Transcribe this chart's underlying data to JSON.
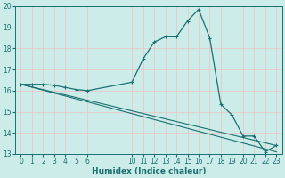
{
  "xlabel": "Humidex (Indice chaleur)",
  "bg_color": "#ccecea",
  "grid_color": "#e8c8c8",
  "line_color": "#1a7070",
  "xlim": [
    -0.5,
    23.5
  ],
  "ylim": [
    13,
    20
  ],
  "yticks": [
    13,
    14,
    15,
    16,
    17,
    18,
    19,
    20
  ],
  "xtick_positions": [
    0,
    1,
    2,
    3,
    4,
    5,
    6,
    10,
    11,
    12,
    13,
    14,
    15,
    16,
    17,
    18,
    19,
    20,
    21,
    22,
    23
  ],
  "xtick_labels": [
    "0",
    "1",
    "2",
    "3",
    "4",
    "5",
    "6",
    "10",
    "11",
    "12",
    "13",
    "14",
    "15",
    "16",
    "17",
    "18",
    "19",
    "20",
    "21",
    "22",
    "23"
  ],
  "curve1_x": [
    0,
    1,
    2,
    3,
    4,
    5,
    6,
    10,
    11,
    12,
    13,
    14,
    15,
    16,
    17,
    18,
    19,
    20,
    21,
    22,
    23
  ],
  "curve1_y": [
    16.3,
    16.3,
    16.3,
    16.25,
    16.15,
    16.05,
    16.0,
    16.4,
    17.5,
    18.3,
    18.55,
    18.55,
    19.3,
    19.85,
    18.5,
    15.35,
    14.85,
    13.85,
    13.85,
    13.1,
    13.4
  ],
  "curve2_x": [
    0,
    23
  ],
  "curve2_y": [
    16.3,
    13.4
  ],
  "curve3_x": [
    0,
    23
  ],
  "curve3_y": [
    16.3,
    13.1
  ],
  "xlabel_fontsize": 6.5,
  "tick_fontsize": 5.5
}
